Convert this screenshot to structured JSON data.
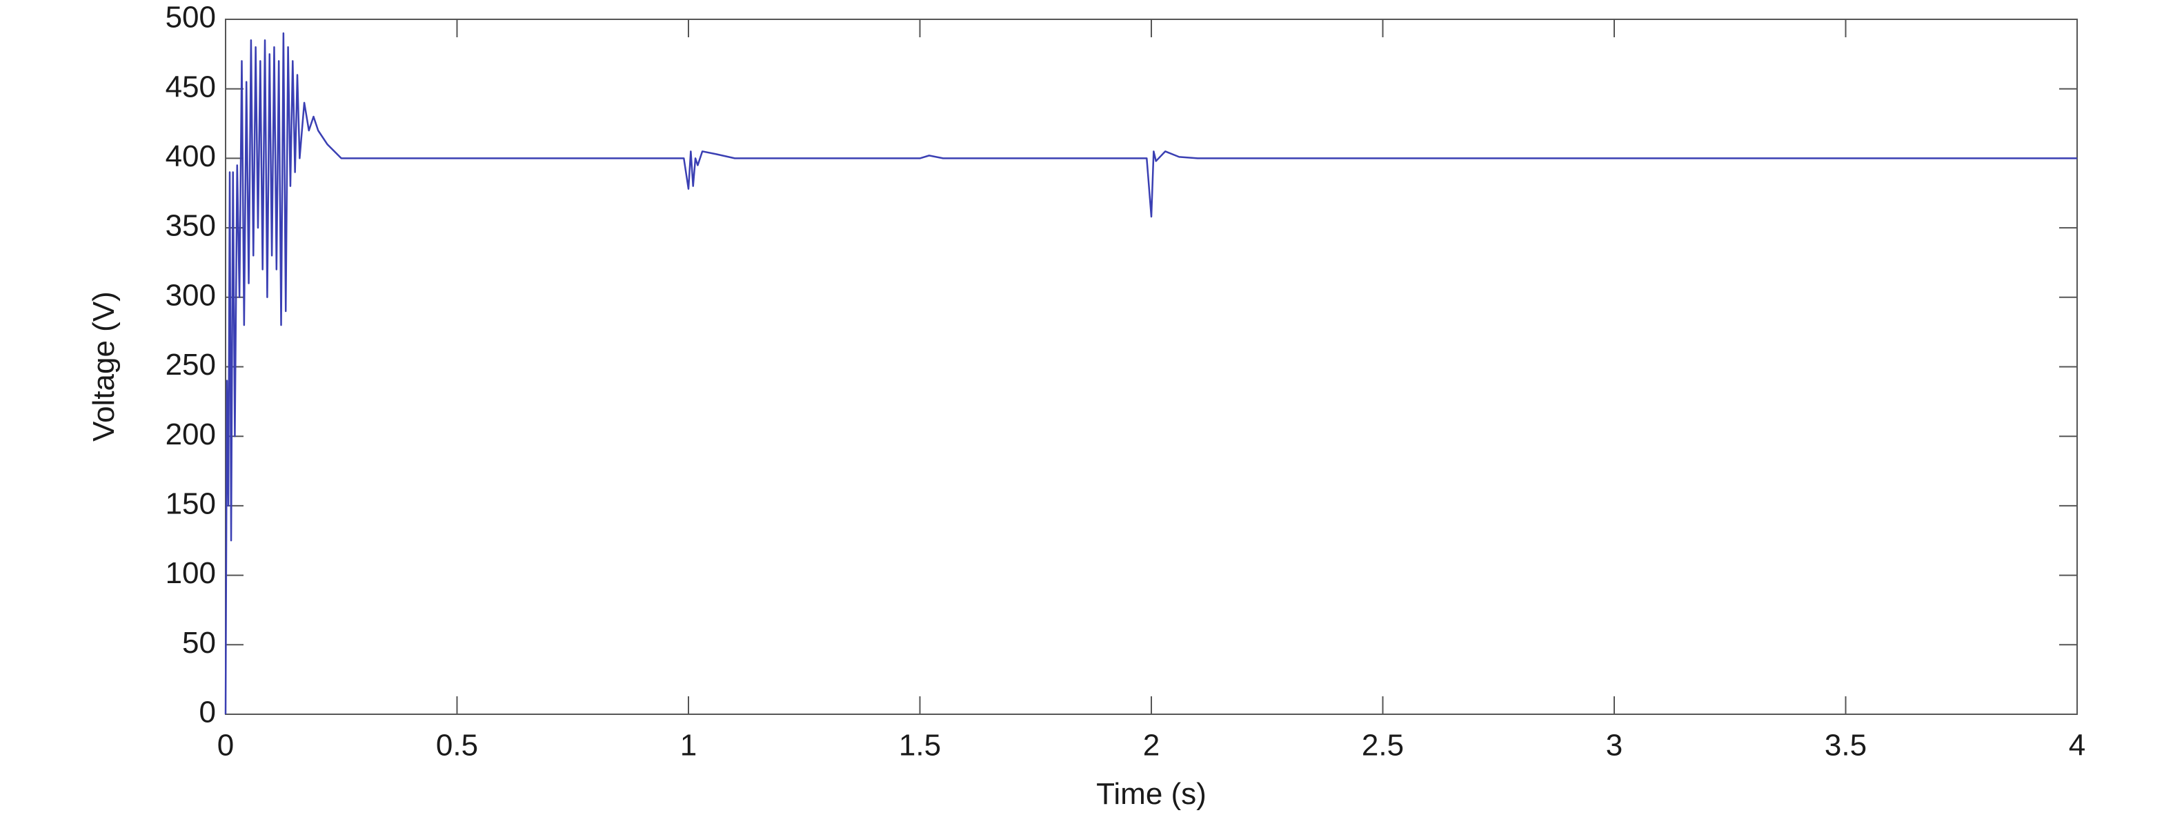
{
  "chart_data": {
    "type": "line",
    "x_label": "Time (s)",
    "y_label": "Voltage (V)",
    "xlim": [
      0,
      4
    ],
    "ylim": [
      0,
      500
    ],
    "xticks": [
      0,
      0.5,
      1,
      1.5,
      2,
      2.5,
      3,
      3.5,
      4
    ],
    "yticks": [
      0,
      50,
      100,
      150,
      200,
      250,
      300,
      350,
      400,
      450,
      500
    ],
    "grid": false,
    "series": [
      {
        "color": "#3a3fb3",
        "x": [
          0,
          0.003,
          0.006,
          0.009,
          0.012,
          0.016,
          0.02,
          0.025,
          0.03,
          0.035,
          0.04,
          0.045,
          0.05,
          0.055,
          0.06,
          0.065,
          0.07,
          0.075,
          0.08,
          0.085,
          0.09,
          0.095,
          0.1,
          0.105,
          0.11,
          0.115,
          0.12,
          0.125,
          0.13,
          0.135,
          0.14,
          0.145,
          0.15,
          0.155,
          0.16,
          0.17,
          0.18,
          0.19,
          0.2,
          0.22,
          0.25,
          0.3,
          0.99,
          1.0,
          1.005,
          1.01,
          1.015,
          1.02,
          1.03,
          1.06,
          1.1,
          1.5,
          1.52,
          1.55,
          1.99,
          2.0,
          2.005,
          2.01,
          2.03,
          2.06,
          2.1,
          4
        ],
        "values": [
          0,
          240,
          150,
          390,
          125,
          390,
          200,
          395,
          300,
          470,
          280,
          455,
          310,
          485,
          330,
          480,
          350,
          470,
          320,
          485,
          300,
          475,
          330,
          480,
          320,
          470,
          280,
          490,
          290,
          480,
          380,
          470,
          390,
          460,
          400,
          440,
          420,
          430,
          420,
          410,
          400,
          400,
          400,
          378,
          405,
          380,
          400,
          395,
          405,
          403,
          400,
          400,
          402,
          400,
          400,
          358,
          405,
          398,
          405,
          401,
          400,
          400
        ]
      }
    ]
  }
}
